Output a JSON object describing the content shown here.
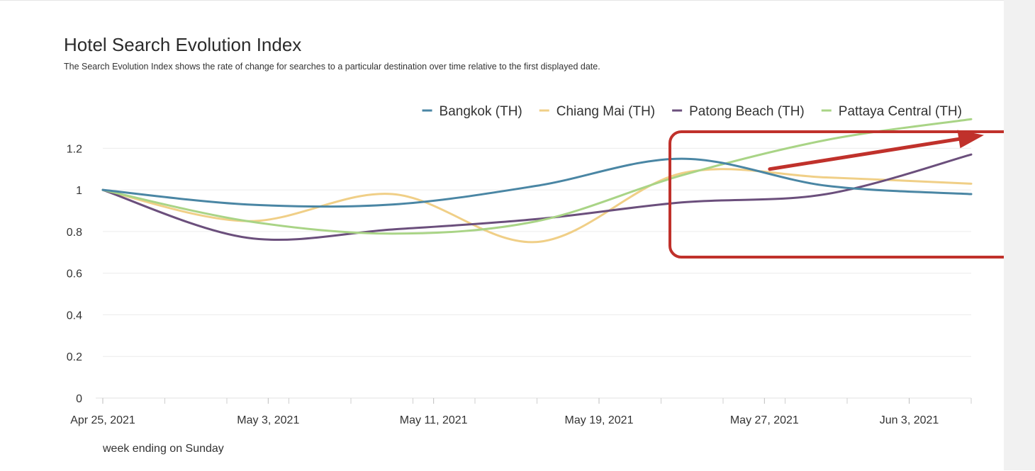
{
  "header": {
    "title": "Hotel Search Evolution Index",
    "subtitle": "The Search Evolution Index shows the rate of change for searches to a particular destination over time relative to the first displayed date."
  },
  "colors": {
    "bangkok": "#4a86a4",
    "chiang_mai": "#f0cf87",
    "patong": "#6b4f7c",
    "pattaya": "#a9d486",
    "annotation": "#c0312b",
    "grid": "#ececec"
  },
  "chart_data": {
    "type": "line",
    "title": "Hotel Search Evolution Index",
    "subtitle": "The Search Evolution Index shows the rate of change for searches to a particular destination over time relative to the first displayed date.",
    "xlabel": "week ending on Sunday",
    "ylabel": "",
    "x": [
      "2021-04-25",
      "2021-05-02",
      "2021-05-09",
      "2021-05-16",
      "2021-05-23",
      "2021-05-30",
      "2021-06-06"
    ],
    "x_tick_labels": [
      "Apr 25, 2021",
      "May 3, 2021",
      "May 11, 2021",
      "May 19, 2021",
      "May 27, 2021",
      "Jun 3, 2021"
    ],
    "x_ticks": [
      "2021-04-25",
      "2021-05-03",
      "2021-05-11",
      "2021-05-19",
      "2021-05-27",
      "2021-06-03"
    ],
    "y_ticks": [
      0,
      0.2,
      0.4,
      0.6,
      0.8,
      1,
      1.2
    ],
    "y_tick_labels": [
      "0",
      "0.2",
      "0.4",
      "0.6",
      "0.8",
      "1",
      "1.2"
    ],
    "ylim": [
      0,
      1.3
    ],
    "grid": true,
    "legend_position": "top-right",
    "series": [
      {
        "name": "Bangkok (TH)",
        "color": "#4a86a4",
        "values": [
          1.0,
          0.93,
          0.93,
          1.02,
          1.15,
          1.02,
          0.98
        ]
      },
      {
        "name": "Chiang Mai (TH)",
        "color": "#f0cf87",
        "values": [
          1.0,
          0.85,
          0.98,
          0.75,
          1.08,
          1.06,
          1.03
        ]
      },
      {
        "name": "Patong Beach (TH)",
        "color": "#6b4f7c",
        "values": [
          1.0,
          0.77,
          0.81,
          0.86,
          0.94,
          0.98,
          1.17
        ]
      },
      {
        "name": "Pattaya Central (TH)",
        "color": "#a9d486",
        "values": [
          1.0,
          0.85,
          0.79,
          0.85,
          1.07,
          1.24,
          1.34
        ]
      }
    ],
    "annotations": [
      {
        "type": "rounded-rectangle-highlight",
        "color": "#c0312b",
        "x_range": [
          "2021-05-23",
          "2021-06-06"
        ],
        "y_range": [
          0.8,
          1.4
        ]
      },
      {
        "type": "arrow",
        "color": "#c0312b",
        "from": [
          "2021-05-30",
          1.1
        ],
        "to": [
          "2021-06-06",
          1.25
        ]
      }
    ]
  }
}
